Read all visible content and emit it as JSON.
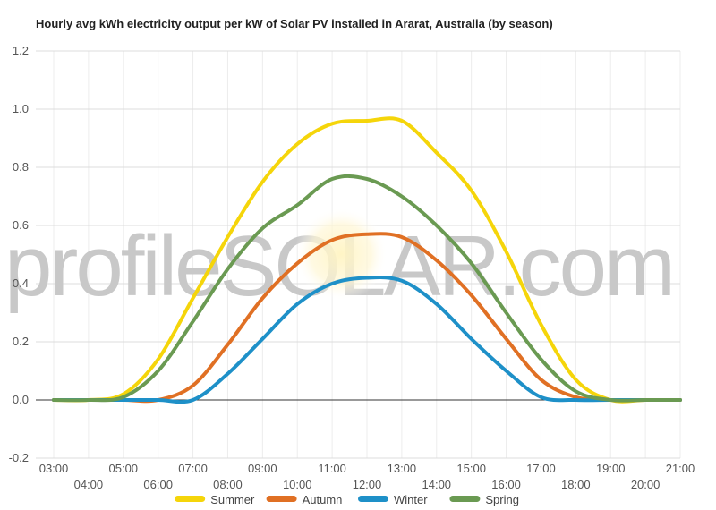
{
  "chart_data": {
    "type": "line",
    "title": "Hourly avg kWh electricity output per kW of Solar PV installed in Ararat, Australia (by season)",
    "xlabel": "",
    "ylabel": "",
    "ylim": [
      -0.2,
      1.2
    ],
    "yticks": [
      "-0.2",
      "0.0",
      "0.2",
      "0.4",
      "0.6",
      "0.8",
      "1.0",
      "1.2"
    ],
    "categories": [
      "03:00",
      "04:00",
      "05:00",
      "06:00",
      "07:00",
      "08:00",
      "09:00",
      "10:00",
      "11:00",
      "12:00",
      "13:00",
      "14:00",
      "15:00",
      "16:00",
      "17:00",
      "18:00",
      "19:00",
      "20:00",
      "21:00"
    ],
    "grid": true,
    "legend_position": "bottom",
    "series": [
      {
        "name": "Summer",
        "color": "#f5d50a",
        "values": [
          0,
          0,
          0.02,
          0.14,
          0.35,
          0.56,
          0.75,
          0.88,
          0.95,
          0.96,
          0.96,
          0.85,
          0.72,
          0.51,
          0.26,
          0.07,
          0,
          0,
          0
        ]
      },
      {
        "name": "Autumn",
        "color": "#e07024",
        "values": [
          0,
          0,
          0,
          0,
          0.05,
          0.19,
          0.35,
          0.47,
          0.55,
          0.57,
          0.56,
          0.48,
          0.36,
          0.21,
          0.07,
          0.01,
          0,
          0,
          0
        ]
      },
      {
        "name": "Winter",
        "color": "#1e90c8",
        "values": [
          0,
          0,
          0,
          0,
          0,
          0.09,
          0.21,
          0.33,
          0.4,
          0.42,
          0.41,
          0.33,
          0.21,
          0.1,
          0.01,
          0,
          0,
          0,
          0
        ]
      },
      {
        "name": "Spring",
        "color": "#6a9a52",
        "values": [
          0,
          0,
          0.01,
          0.1,
          0.27,
          0.45,
          0.59,
          0.67,
          0.76,
          0.76,
          0.7,
          0.6,
          0.47,
          0.3,
          0.14,
          0.03,
          0,
          0,
          0
        ]
      }
    ]
  },
  "watermark": {
    "text": "profileSOLAR.com"
  }
}
